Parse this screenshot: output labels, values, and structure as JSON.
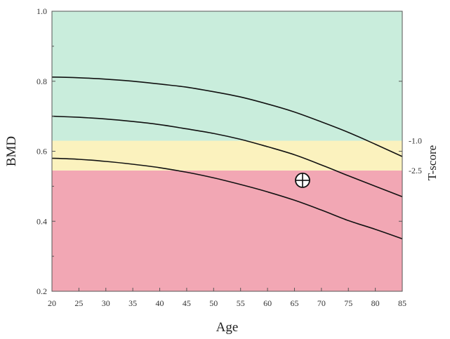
{
  "chart_data": {
    "type": "line",
    "title": "",
    "xlabel": "Age",
    "ylabel": "BMD",
    "right_label": "T-score",
    "xlim": [
      20,
      85
    ],
    "ylim": [
      0.2,
      1.0
    ],
    "x_ticks": [
      20,
      25,
      30,
      35,
      40,
      45,
      50,
      55,
      60,
      65,
      70,
      75,
      80,
      85
    ],
    "y_ticks": [
      0.2,
      0.4,
      0.6,
      0.8,
      1.0
    ],
    "y_tick_labels": [
      "0.2",
      "0.4",
      "0.6",
      "0.8",
      "1.0"
    ],
    "grid": false,
    "bands": [
      {
        "from": 0.2,
        "to": 0.545,
        "color": "#f2a7b4"
      },
      {
        "from": 0.545,
        "to": 0.63,
        "color": "#fbf2be"
      },
      {
        "from": 0.63,
        "to": 1.0,
        "color": "#c9eddc"
      }
    ],
    "thresholds": [
      {
        "label": "-1.0",
        "y": 0.63
      },
      {
        "label": "-2.5",
        "y": 0.545
      }
    ],
    "x": [
      20,
      25,
      30,
      35,
      40,
      45,
      50,
      55,
      60,
      65,
      70,
      75,
      80,
      85
    ],
    "series": [
      {
        "values": [
          0.812,
          0.81,
          0.806,
          0.8,
          0.792,
          0.783,
          0.77,
          0.755,
          0.735,
          0.712,
          0.684,
          0.654,
          0.62,
          0.585
        ]
      },
      {
        "values": [
          0.7,
          0.697,
          0.692,
          0.685,
          0.676,
          0.664,
          0.651,
          0.634,
          0.613,
          0.59,
          0.561,
          0.53,
          0.5,
          0.47
        ]
      },
      {
        "values": [
          0.58,
          0.577,
          0.571,
          0.563,
          0.553,
          0.54,
          0.524,
          0.505,
          0.484,
          0.46,
          0.432,
          0.402,
          0.377,
          0.35
        ]
      }
    ],
    "marker": {
      "x": 66.5,
      "y": 0.517,
      "symbol": "circle-plus"
    },
    "line_color": "#111111",
    "marker_fill": "#ffffff"
  }
}
